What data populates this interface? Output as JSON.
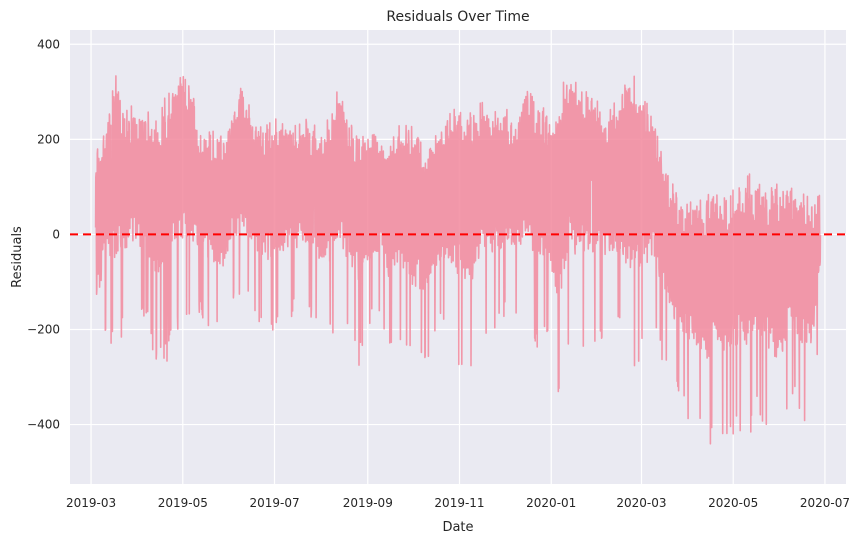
{
  "chart_data": {
    "type": "line",
    "title": "Residuals Over Time",
    "xlabel": "Date",
    "ylabel": "Residuals",
    "xlim": [
      "2019-02-15",
      "2020-07-15"
    ],
    "ylim": [
      -525,
      430
    ],
    "x_ticks": [
      "2019-03",
      "2019-05",
      "2019-07",
      "2019-09",
      "2019-11",
      "2020-01",
      "2020-03",
      "2020-05",
      "2020-07"
    ],
    "y_ticks": [
      -400,
      -200,
      0,
      200,
      400
    ],
    "grid": true,
    "style": "seaborn-darkgrid",
    "colors": {
      "background": "#EAEAF2",
      "grid": "#FFFFFF",
      "series": "#F2889C",
      "reference": "#FF0000"
    },
    "reference_line": {
      "y": 0,
      "style": "dashed"
    },
    "series": [
      {
        "x": [
          "2019-03-04",
          "2019-03-11",
          "2019-03-18",
          "2019-03-25",
          "2019-04-01",
          "2019-04-08",
          "2019-04-15",
          "2019-04-22",
          "2019-04-29",
          "2019-05-06",
          "2019-05-13",
          "2019-05-20",
          "2019-05-27",
          "2019-06-03",
          "2019-06-10",
          "2019-06-17",
          "2019-06-24",
          "2019-07-01",
          "2019-07-08",
          "2019-07-15",
          "2019-07-22",
          "2019-07-29",
          "2019-08-05",
          "2019-08-12",
          "2019-08-19",
          "2019-08-26",
          "2019-09-02",
          "2019-09-09",
          "2019-09-16",
          "2019-09-23",
          "2019-09-30",
          "2019-10-07",
          "2019-10-14",
          "2019-10-21",
          "2019-10-28",
          "2019-11-04",
          "2019-11-11",
          "2019-11-18",
          "2019-11-25",
          "2019-12-02",
          "2019-12-09",
          "2019-12-16",
          "2019-12-23",
          "2019-12-30",
          "2020-01-06",
          "2020-01-13",
          "2020-01-20",
          "2020-01-27",
          "2020-02-03",
          "2020-02-10",
          "2020-02-17",
          "2020-02-24",
          "2020-03-02",
          "2020-03-09",
          "2020-03-16",
          "2020-03-23",
          "2020-03-30",
          "2020-04-06",
          "2020-04-13",
          "2020-04-20",
          "2020-04-27",
          "2020-05-04",
          "2020-05-11",
          "2020-05-18",
          "2020-05-25",
          "2020-06-01",
          "2020-06-08",
          "2020-06-15",
          "2020-06-22",
          "2020-06-28"
        ],
        "low": [
          -330,
          -240,
          -250,
          -190,
          -180,
          -210,
          -300,
          -260,
          -200,
          -190,
          -180,
          -200,
          -230,
          -160,
          -150,
          -170,
          -200,
          -220,
          -180,
          -170,
          -160,
          -200,
          -240,
          -190,
          -220,
          -280,
          -200,
          -180,
          -260,
          -220,
          -280,
          -300,
          -240,
          -200,
          -250,
          -300,
          -280,
          -210,
          -200,
          -180,
          -170,
          -200,
          -250,
          -230,
          -380,
          -270,
          -260,
          -230,
          -220,
          -200,
          -230,
          -330,
          -260,
          -210,
          -280,
          -330,
          -390,
          -410,
          -470,
          -440,
          -430,
          -420,
          -440,
          -380,
          -430,
          -480,
          -330,
          -400,
          -400,
          -190
        ],
        "high": [
          200,
          250,
          340,
          270,
          280,
          260,
          290,
          310,
          345,
          320,
          220,
          220,
          215,
          260,
          325,
          240,
          230,
          250,
          240,
          230,
          250,
          230,
          240,
          320,
          235,
          230,
          220,
          230,
          200,
          240,
          230,
          210,
          200,
          240,
          270,
          250,
          260,
          310,
          260,
          270,
          240,
          340,
          290,
          250,
          270,
          390,
          330,
          300,
          280,
          270,
          300,
          360,
          300,
          250,
          150,
          100,
          90,
          70,
          90,
          110,
          100,
          120,
          130,
          110,
          100,
          120,
          110,
          90,
          80,
          100
        ]
      }
    ]
  }
}
